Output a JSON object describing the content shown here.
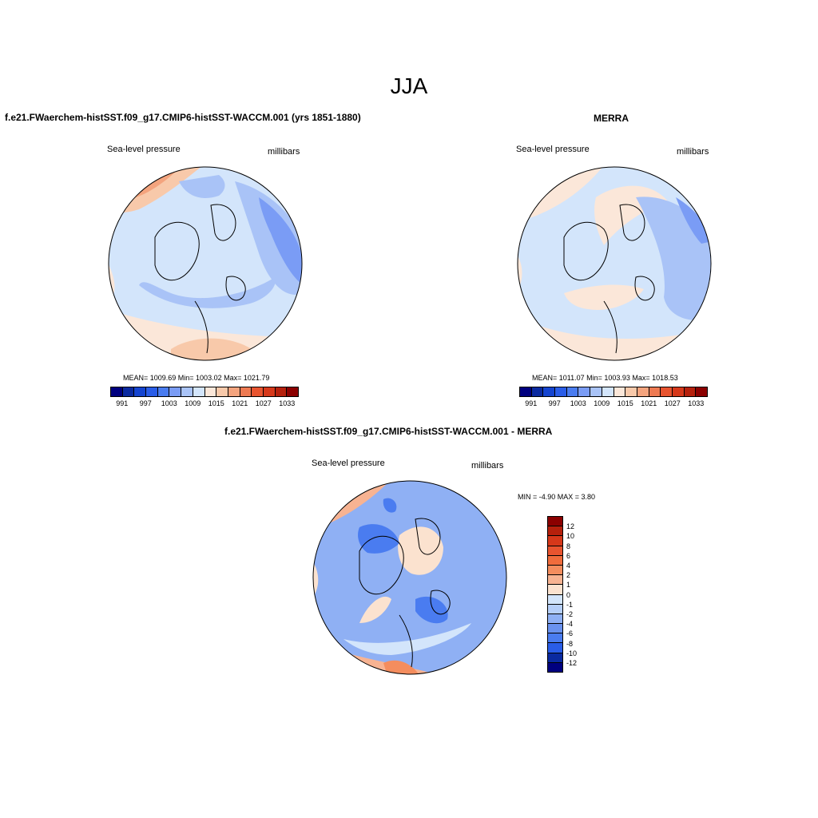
{
  "main_title": "JJA",
  "panels": [
    {
      "title": "f.e21.FWaerchem-histSST.f09_g17.CMIP6-histSST-WACCM.001 (yrs 1851-1880)",
      "left_label": "Sea-level pressure",
      "right_label": "millibars",
      "stats": "MEAN= 1009.69  Min= 1003.02  Max= 1021.79"
    },
    {
      "title": "MERRA",
      "left_label": "Sea-level pressure",
      "right_label": "millibars",
      "stats": "MEAN= 1011.07  Min= 1003.93  Max= 1018.53"
    },
    {
      "title": "f.e21.FWaerchem-histSST.f09_g17.CMIP6-histSST-WACCM.001 - MERRA",
      "left_label": "Sea-level pressure",
      "right_label": "millibars",
      "stats": "MIN =  -4.90 MAX =   3.80"
    }
  ],
  "abs_colorbar": {
    "colors": [
      "#00007f",
      "#0a2aa0",
      "#1444d0",
      "#2a5de8",
      "#4a7cf0",
      "#7a9cf5",
      "#a9c3f7",
      "#d3e5fb",
      "#fbe7d9",
      "#f8c9aa",
      "#f4a47e",
      "#ee7a52",
      "#e8542f",
      "#d6381a",
      "#b5200c",
      "#8b0000"
    ],
    "tick_labels": [
      "991",
      "997",
      "1003",
      "1009",
      "1015",
      "1021",
      "1027",
      "1033"
    ]
  },
  "diff_colorbar": {
    "colors": [
      "#8b0000",
      "#b5200c",
      "#d6381a",
      "#e8542f",
      "#f06c3c",
      "#f48d5e",
      "#f7b392",
      "#fbe2cf",
      "#d3e5fb",
      "#b6cff9",
      "#8fb0f4",
      "#6a92ef",
      "#4a7cf0",
      "#2a5de8",
      "#0a2aa0",
      "#00007f"
    ],
    "tick_labels": [
      "12",
      "10",
      "8",
      "6",
      "4",
      "2",
      "1",
      "0",
      "-1",
      "-2",
      "-4",
      "-6",
      "-8",
      "-10",
      "-12"
    ]
  },
  "colors": {
    "background": "#ffffff",
    "coastline": "#000000"
  }
}
